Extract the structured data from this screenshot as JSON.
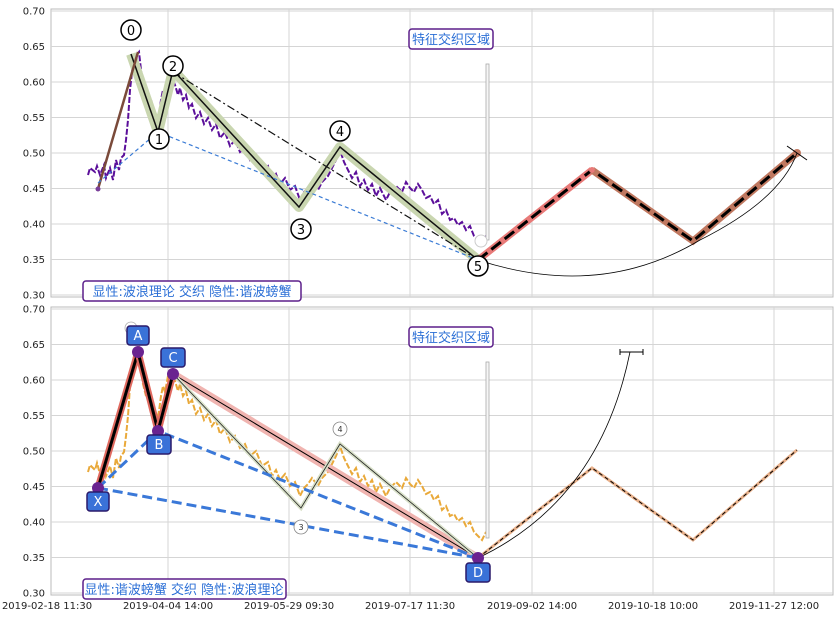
{
  "chart_data": [
    {
      "type": "line",
      "panel": "top",
      "ylim": [
        0.3,
        0.7
      ],
      "yticks": [
        "0.70",
        "0.65",
        "0.60",
        "0.55",
        "0.50",
        "0.45",
        "0.40",
        "0.35",
        "0.30"
      ],
      "grid": true,
      "annotation_box": "特征交织区域",
      "legend_text": "显性:波浪理论 交织 隐性:谐波螃蟹",
      "wave_points": [
        {
          "label": "0",
          "x": "2019-03-14",
          "y": 0.64
        },
        {
          "label": "1",
          "x": "2019-03-24",
          "y": 0.525
        },
        {
          "label": "2",
          "x": "2019-03-31",
          "y": 0.615
        },
        {
          "label": "3",
          "x": "2019-05-23",
          "y": 0.42
        },
        {
          "label": "4",
          "x": "2019-06-11",
          "y": 0.51
        },
        {
          "label": "5",
          "x": "2019-08-22",
          "y": 0.355
        }
      ],
      "projection": [
        {
          "x": "2019-08-22",
          "y": 0.355
        },
        {
          "x": "2019-09-30",
          "y": 0.475
        },
        {
          "x": "2019-10-30",
          "y": 0.375
        },
        {
          "x": "2019-12-05",
          "y": 0.5
        }
      ]
    },
    {
      "type": "line",
      "panel": "bottom",
      "ylim": [
        0.3,
        0.7
      ],
      "yticks": [
        "0.70",
        "0.65",
        "0.60",
        "0.55",
        "0.50",
        "0.45",
        "0.40",
        "0.35",
        "0.30"
      ],
      "xticks": [
        "2019-02-18 11:30",
        "2019-04-04 14:00",
        "2019-05-29 09:30",
        "2019-07-17 11:30",
        "2019-09-02 14:00",
        "2019-10-18 10:00",
        "2019-11-27 12:00"
      ],
      "grid": true,
      "annotation_box": "特征交织区域",
      "legend_text": "显性:谐波螃蟹 交织 隐性:波浪理论",
      "harmonic_points": [
        {
          "label": "X",
          "x": "2019-03-04",
          "y": 0.45
        },
        {
          "label": "A",
          "x": "2019-03-17",
          "y": 0.64
        },
        {
          "label": "B",
          "x": "2019-03-24",
          "y": 0.53
        },
        {
          "label": "C",
          "x": "2019-03-31",
          "y": 0.61
        },
        {
          "label": "D",
          "x": "2019-08-22",
          "y": 0.355
        }
      ],
      "small_labels": [
        "3",
        "4"
      ]
    }
  ]
}
